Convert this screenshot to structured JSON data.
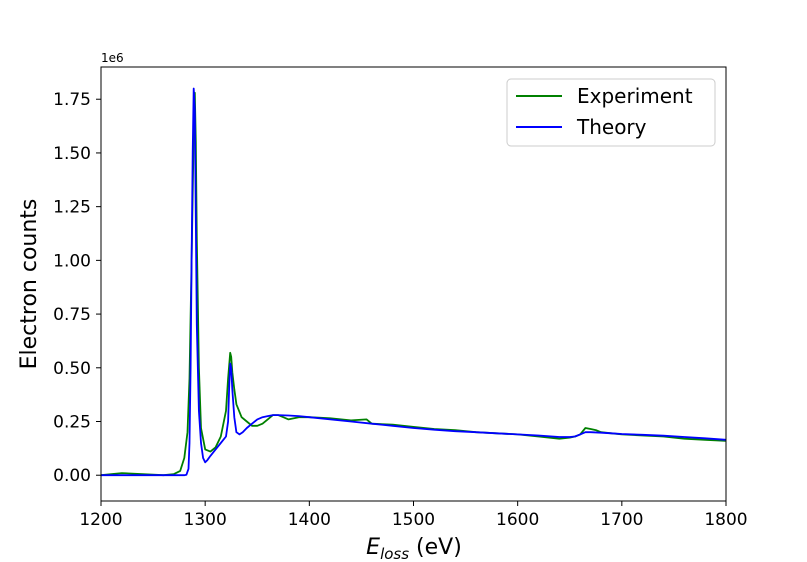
{
  "chart_data": {
    "type": "line",
    "title": "",
    "xlabel_main": "E",
    "xlabel_sub": "loss",
    "xlabel_unit": " (eV)",
    "ylabel": "Electron counts",
    "y_multiplier_label": "1e6",
    "xlim": [
      1200,
      1800
    ],
    "ylim": [
      -0.12,
      1.9
    ],
    "x_ticks": [
      1200,
      1300,
      1400,
      1500,
      1600,
      1700,
      1800
    ],
    "x_tick_labels": [
      "1200",
      "1300",
      "1400",
      "1500",
      "1600",
      "1700",
      "1800"
    ],
    "y_ticks": [
      0,
      0.25,
      0.5,
      0.75,
      1.0,
      1.25,
      1.5,
      1.75
    ],
    "y_tick_labels": [
      "0.00",
      "0.25",
      "0.50",
      "0.75",
      "1.00",
      "1.25",
      "1.50",
      "1.75"
    ],
    "grid": false,
    "legend_position": "top-right",
    "series": [
      {
        "name": "Experiment",
        "color": "#008000",
        "x": [
          1200,
          1220,
          1240,
          1260,
          1270,
          1276,
          1280,
          1283,
          1285,
          1287,
          1289,
          1290,
          1291,
          1292,
          1294,
          1296,
          1300,
          1305,
          1310,
          1315,
          1320,
          1322,
          1324,
          1325,
          1326,
          1328,
          1330,
          1335,
          1340,
          1345,
          1350,
          1355,
          1360,
          1365,
          1370,
          1375,
          1380,
          1390,
          1400,
          1420,
          1440,
          1455,
          1460,
          1480,
          1500,
          1520,
          1540,
          1560,
          1580,
          1600,
          1620,
          1640,
          1650,
          1655,
          1660,
          1665,
          1670,
          1675,
          1680,
          1690,
          1700,
          1720,
          1740,
          1760,
          1780,
          1800
        ],
        "y": [
          0.0,
          0.01,
          0.005,
          0.0,
          0.005,
          0.02,
          0.08,
          0.2,
          0.45,
          1.0,
          1.6,
          1.78,
          1.55,
          1.1,
          0.5,
          0.22,
          0.12,
          0.11,
          0.13,
          0.18,
          0.3,
          0.45,
          0.57,
          0.55,
          0.48,
          0.4,
          0.33,
          0.27,
          0.25,
          0.23,
          0.23,
          0.24,
          0.26,
          0.28,
          0.28,
          0.27,
          0.26,
          0.27,
          0.27,
          0.265,
          0.255,
          0.26,
          0.24,
          0.235,
          0.225,
          0.215,
          0.21,
          0.2,
          0.195,
          0.19,
          0.18,
          0.17,
          0.175,
          0.18,
          0.19,
          0.22,
          0.215,
          0.21,
          0.2,
          0.195,
          0.19,
          0.185,
          0.18,
          0.17,
          0.165,
          0.16
        ]
      },
      {
        "name": "Theory",
        "color": "#0000ff",
        "x": [
          1200,
          1220,
          1240,
          1260,
          1270,
          1280,
          1282,
          1284,
          1285,
          1286,
          1287,
          1288,
          1289,
          1290,
          1291,
          1292,
          1294,
          1296,
          1298,
          1300,
          1302,
          1305,
          1310,
          1315,
          1320,
          1322,
          1323,
          1324,
          1325,
          1326,
          1328,
          1330,
          1333,
          1336,
          1340,
          1345,
          1350,
          1355,
          1360,
          1365,
          1370,
          1380,
          1390,
          1400,
          1420,
          1440,
          1460,
          1480,
          1500,
          1520,
          1540,
          1560,
          1580,
          1600,
          1620,
          1640,
          1650,
          1655,
          1660,
          1665,
          1670,
          1680,
          1690,
          1700,
          1720,
          1740,
          1760,
          1780,
          1800
        ],
        "y": [
          0.0,
          0.0,
          0.0,
          0.0,
          0.0,
          0.0,
          0.002,
          0.03,
          0.15,
          0.5,
          1.0,
          1.5,
          1.8,
          1.7,
          1.2,
          0.7,
          0.3,
          0.15,
          0.08,
          0.06,
          0.07,
          0.09,
          0.12,
          0.15,
          0.18,
          0.25,
          0.4,
          0.52,
          0.5,
          0.4,
          0.27,
          0.2,
          0.19,
          0.2,
          0.22,
          0.24,
          0.26,
          0.27,
          0.275,
          0.28,
          0.28,
          0.278,
          0.275,
          0.27,
          0.26,
          0.25,
          0.24,
          0.23,
          0.22,
          0.212,
          0.205,
          0.2,
          0.195,
          0.19,
          0.185,
          0.178,
          0.178,
          0.18,
          0.19,
          0.2,
          0.2,
          0.198,
          0.195,
          0.192,
          0.188,
          0.184,
          0.178,
          0.172,
          0.165
        ]
      }
    ]
  }
}
